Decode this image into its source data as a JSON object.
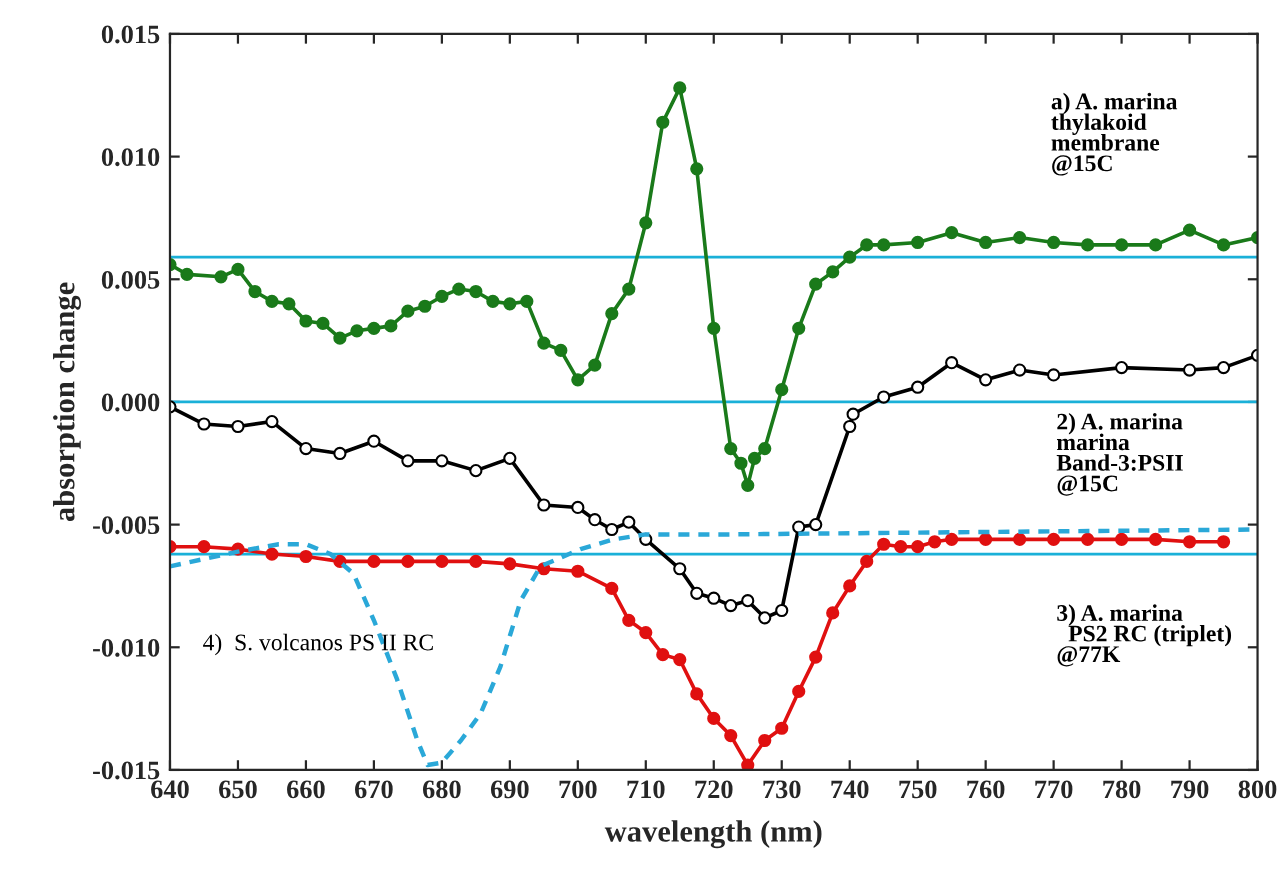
{
  "chart_data": {
    "type": "line",
    "xlabel": "wavelength (nm)",
    "ylabel": "absorption change",
    "xlim": [
      640,
      800
    ],
    "xticks": [
      640,
      650,
      660,
      670,
      680,
      690,
      700,
      710,
      720,
      730,
      740,
      750,
      760,
      770,
      780,
      790,
      800
    ],
    "ylim": [
      -0.015,
      0.015
    ],
    "yticks": [
      {
        "value": -0.015,
        "label": "-0.015"
      },
      {
        "value": -0.01,
        "label": "-0.010"
      },
      {
        "value": -0.005,
        "label": "-0.005"
      },
      {
        "value": 0,
        "label": "0.000"
      },
      {
        "value": 0.005,
        "label": "0.005"
      },
      {
        "value": 0.01,
        "label": "0.010"
      },
      {
        "value": 0.015,
        "label": "0.015"
      }
    ],
    "grid": false,
    "legend": false,
    "series": [
      {
        "name": "a) A. marina\nthylakoid\nmembrane\n@15C",
        "color": "#1a7a1a",
        "marker": "circle",
        "line_style": "solid",
        "x": [
          640,
          642.5,
          647.5,
          650,
          652.5,
          655,
          657.5,
          660,
          662.5,
          665,
          667.5,
          670,
          672.5,
          675,
          677.5,
          680,
          682.5,
          685,
          687.5,
          690,
          692.5,
          695,
          697.5,
          700,
          702.5,
          705,
          707.5,
          710,
          712.5,
          715,
          717.5,
          720,
          722.5,
          724,
          725,
          726,
          727.5,
          730,
          732.5,
          735,
          737.5,
          740,
          742.5,
          745,
          750,
          755,
          760,
          765,
          770,
          775,
          780,
          785,
          790,
          795,
          800
        ],
        "values": [
          0.0056,
          0.0052,
          0.0051,
          0.0054,
          0.0045,
          0.0041,
          0.004,
          0.0033,
          0.0032,
          0.0026,
          0.0029,
          0.003,
          0.0031,
          0.0037,
          0.0039,
          0.0043,
          0.0046,
          0.0045,
          0.0041,
          0.004,
          0.0041,
          0.0024,
          0.0021,
          0.0009,
          0.0015,
          0.0036,
          0.0046,
          0.0073,
          0.0114,
          0.0128,
          0.0095,
          0.003,
          -0.0019,
          -0.0025,
          -0.0034,
          -0.0023,
          -0.0019,
          0.0005,
          0.003,
          0.0048,
          0.0053,
          0.0059,
          0.0064,
          0.0064,
          0.0065,
          0.0069,
          0.0065,
          0.0067,
          0.0065,
          0.0064,
          0.0064,
          0.0064,
          0.007,
          0.0064,
          0.0067
        ]
      },
      {
        "name": "2) A. marina\nmarina\nBand-3:PSII\n@15C",
        "color": "#000000",
        "marker": "open circle",
        "line_style": "solid",
        "x": [
          640,
          645,
          650,
          655,
          660,
          665,
          670,
          675,
          680,
          685,
          690,
          695,
          700,
          702.5,
          705,
          707.5,
          710,
          715,
          717.5,
          720,
          722.5,
          725,
          727.5,
          730,
          732.5,
          735,
          740,
          740.5,
          745,
          750,
          755,
          760,
          765,
          770,
          780,
          790,
          795,
          800
        ],
        "values": [
          -0.0002,
          -0.0009,
          -0.001,
          -0.0008,
          -0.0019,
          -0.0021,
          -0.0016,
          -0.0024,
          -0.0024,
          -0.0028,
          -0.0023,
          -0.0042,
          -0.0043,
          -0.0048,
          -0.0052,
          -0.0049,
          -0.0056,
          -0.0068,
          -0.0078,
          -0.008,
          -0.0083,
          -0.0081,
          -0.0088,
          -0.0085,
          -0.0051,
          -0.005,
          -0.001,
          -0.0005,
          0.0002,
          0.0006,
          0.0016,
          0.0009,
          0.0013,
          0.0011,
          0.0014,
          0.0013,
          0.0014,
          0.0019
        ]
      },
      {
        "name": "3) A. marina\n  PS2 RC (triplet)\n@77K",
        "color": "#e01010",
        "marker": "circle",
        "line_style": "solid",
        "x": [
          640,
          645,
          650,
          655,
          660,
          665,
          670,
          675,
          680,
          685,
          690,
          695,
          700,
          705,
          707.5,
          710,
          712.5,
          715,
          717.5,
          720,
          722.5,
          725,
          727.5,
          730,
          732.5,
          735,
          737.5,
          740,
          742.5,
          745,
          747.5,
          750,
          752.5,
          755,
          760,
          765,
          770,
          775,
          780,
          785,
          790,
          795
        ],
        "values": [
          -0.0059,
          -0.0059,
          -0.006,
          -0.0062,
          -0.0063,
          -0.0065,
          -0.0065,
          -0.0065,
          -0.0065,
          -0.0065,
          -0.0066,
          -0.0068,
          -0.0069,
          -0.0076,
          -0.0089,
          -0.0094,
          -0.0103,
          -0.0105,
          -0.0119,
          -0.0129,
          -0.0136,
          -0.0148,
          -0.0138,
          -0.0133,
          -0.0118,
          -0.0104,
          -0.0086,
          -0.0075,
          -0.0065,
          -0.0058,
          -0.0059,
          -0.0059,
          -0.0057,
          -0.0056,
          -0.0056,
          -0.0056,
          -0.0056,
          -0.0056,
          -0.0056,
          -0.0056,
          -0.0057,
          -0.0057
        ]
      },
      {
        "name": "4)  S. volcanos PS II RC",
        "color": "#2aa8d8",
        "marker": "none",
        "line_style": "dashed",
        "x": [
          640,
          650,
          656,
          660,
          663.6,
          667,
          670,
          673.4,
          676.4,
          677.9,
          680,
          682.8,
          685.7,
          688.6,
          691.6,
          694.5,
          700.4,
          705.3,
          710,
          722,
          760,
          800
        ],
        "values": [
          -0.0067,
          -0.0061,
          -0.0058,
          -0.0058,
          -0.0062,
          -0.007,
          -0.0089,
          -0.0113,
          -0.0138,
          -0.0148,
          -0.0147,
          -0.0138,
          -0.0127,
          -0.0108,
          -0.0081,
          -0.0067,
          -0.006,
          -0.0056,
          -0.0054,
          -0.0054,
          -0.0053,
          -0.0052
        ]
      }
    ],
    "ref_lines": [
      {
        "axis": "y",
        "value": 0.0059,
        "color": "#1ab0d8"
      },
      {
        "axis": "y",
        "value": 0,
        "color": "#1ab0d8"
      },
      {
        "axis": "y",
        "value": -0.0062,
        "color": "#1ab0d8"
      }
    ]
  }
}
